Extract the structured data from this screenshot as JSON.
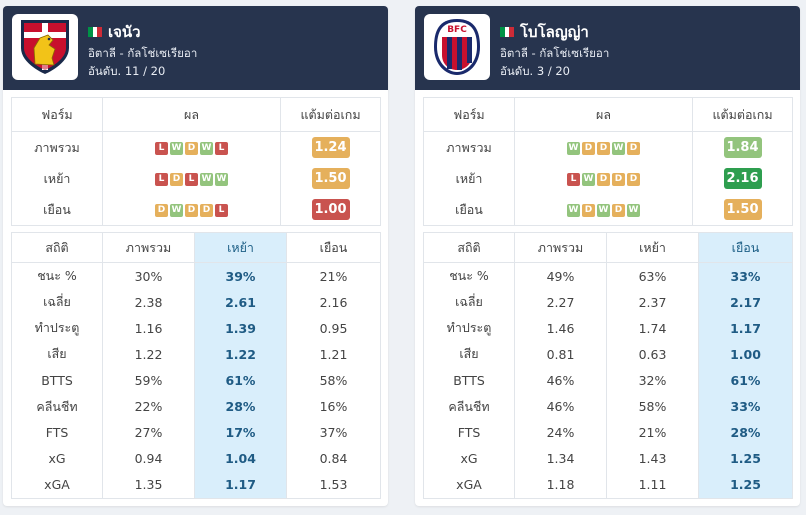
{
  "teams": [
    {
      "name": "เจนัว",
      "league": "อิตาลี - กัลโช่เซเรียอา",
      "rank_text": "อันดับ. 11 / 20",
      "logo_icon": "genoa-crest-icon",
      "form_headers": [
        "ฟอร์ม",
        "ผล",
        "แต้มต่อเกม"
      ],
      "form_rows": [
        {
          "label": "ภาพรวม",
          "results": [
            "L",
            "W",
            "D",
            "W",
            "L"
          ],
          "ppg": "1.24",
          "ppg_color": "#e5b05c"
        },
        {
          "label": "เหย้า",
          "results": [
            "L",
            "D",
            "L",
            "W",
            "W"
          ],
          "ppg": "1.50",
          "ppg_color": "#e5b05c"
        },
        {
          "label": "เยือน",
          "results": [
            "D",
            "W",
            "D",
            "D",
            "L"
          ],
          "ppg": "1.00",
          "ppg_color": "#c9534f"
        }
      ],
      "stat_headers": [
        "สถิติ",
        "ภาพรวม",
        "เหย้า",
        "เยือน"
      ],
      "highlight_col": 2,
      "stat_rows": [
        [
          "ชนะ %",
          "30%",
          "39%",
          "21%"
        ],
        [
          "เฉลี่ย",
          "2.38",
          "2.61",
          "2.16"
        ],
        [
          "ทำประตู",
          "1.16",
          "1.39",
          "0.95"
        ],
        [
          "เสีย",
          "1.22",
          "1.22",
          "1.21"
        ],
        [
          "BTTS",
          "59%",
          "61%",
          "58%"
        ],
        [
          "คลีนชีท",
          "22%",
          "28%",
          "16%"
        ],
        [
          "FTS",
          "27%",
          "17%",
          "37%"
        ],
        [
          "xG",
          "0.94",
          "1.04",
          "0.84"
        ],
        [
          "xGA",
          "1.35",
          "1.17",
          "1.53"
        ]
      ]
    },
    {
      "name": "โบโลญญ่า",
      "league": "อิตาลี - กัลโช่เซเรียอา",
      "rank_text": "อันดับ. 3 / 20",
      "logo_icon": "bologna-crest-icon",
      "form_headers": [
        "ฟอร์ม",
        "ผล",
        "แต้มต่อเกม"
      ],
      "form_rows": [
        {
          "label": "ภาพรวม",
          "results": [
            "W",
            "D",
            "D",
            "W",
            "D"
          ],
          "ppg": "1.84",
          "ppg_color": "#93c47d"
        },
        {
          "label": "เหย้า",
          "results": [
            "L",
            "W",
            "D",
            "D",
            "D"
          ],
          "ppg": "2.16",
          "ppg_color": "#2e9e4f"
        },
        {
          "label": "เยือน",
          "results": [
            "W",
            "D",
            "W",
            "D",
            "W"
          ],
          "ppg": "1.50",
          "ppg_color": "#e5b05c"
        }
      ],
      "stat_headers": [
        "สถิติ",
        "ภาพรวม",
        "เหย้า",
        "เยือน"
      ],
      "highlight_col": 3,
      "stat_rows": [
        [
          "ชนะ %",
          "49%",
          "63%",
          "33%"
        ],
        [
          "เฉลี่ย",
          "2.27",
          "2.37",
          "2.17"
        ],
        [
          "ทำประตู",
          "1.46",
          "1.74",
          "1.17"
        ],
        [
          "เสีย",
          "0.81",
          "0.63",
          "1.00"
        ],
        [
          "BTTS",
          "46%",
          "32%",
          "61%"
        ],
        [
          "คลีนชีท",
          "46%",
          "58%",
          "33%"
        ],
        [
          "FTS",
          "24%",
          "21%",
          "28%"
        ],
        [
          "xG",
          "1.34",
          "1.43",
          "1.25"
        ],
        [
          "xGA",
          "1.18",
          "1.11",
          "1.25"
        ]
      ]
    }
  ],
  "flag_icon": "italy-flag-icon",
  "flag_colors": [
    "#009246",
    "#ffffff",
    "#ce2b37"
  ],
  "header_color": "#27344e",
  "highlight_color": "#d9eefb"
}
